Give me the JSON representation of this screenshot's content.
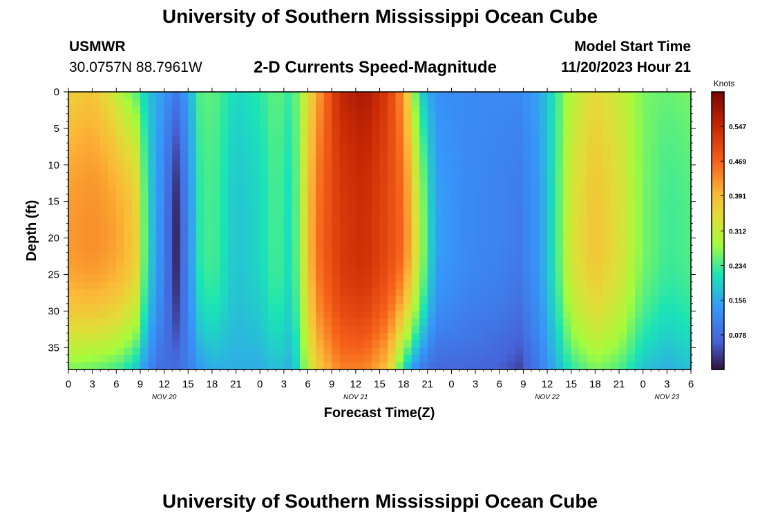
{
  "header": {
    "title": "University of Southern Mississippi Ocean Cube",
    "station": "USMWR",
    "coords": "30.0757N  88.7961W",
    "subtitle": "2-D Currents Speed-Magnitude",
    "model_label": "Model Start Time",
    "model_time": "11/20/2023 Hour 21"
  },
  "footer": {
    "title": "University of Southern Mississippi Ocean Cube"
  },
  "chart_data": {
    "type": "heatmap",
    "xlabel": "Forecast Time(Z)",
    "ylabel": "Depth (ft)",
    "x_tick_labels": [
      "0",
      "3",
      "6",
      "9",
      "12",
      "15",
      "18",
      "21",
      "0",
      "3",
      "6",
      "9",
      "12",
      "15",
      "18",
      "21",
      "0",
      "3",
      "6",
      "9",
      "12",
      "15",
      "18",
      "21",
      "0",
      "3",
      "6"
    ],
    "x_range_hours": [
      0,
      78
    ],
    "date_labels": [
      {
        "label": "NOV 20",
        "hour": 12
      },
      {
        "label": "NOV 21",
        "hour": 36
      },
      {
        "label": "NOV 22",
        "hour": 60
      },
      {
        "label": "NOV 23",
        "hour": 75
      }
    ],
    "y_ticks": [
      0,
      5,
      10,
      15,
      20,
      25,
      30,
      35
    ],
    "y_range_ft": [
      0,
      38
    ],
    "y_inverted": true,
    "colorbar": {
      "label": "Knots",
      "ticks": [
        "0.078",
        "0.156",
        "0.234",
        "0.312",
        "0.391",
        "0.469",
        "0.547"
      ],
      "range": [
        0.0,
        0.625
      ]
    },
    "profiles": [
      {
        "hour": 0,
        "surface": 0.36,
        "mid": 0.42,
        "bottom": 0.26
      },
      {
        "hour": 3,
        "surface": 0.38,
        "mid": 0.43,
        "bottom": 0.25
      },
      {
        "hour": 5,
        "surface": 0.34,
        "mid": 0.42,
        "bottom": 0.24
      },
      {
        "hour": 7,
        "surface": 0.28,
        "mid": 0.4,
        "bottom": 0.22
      },
      {
        "hour": 8.5,
        "surface": 0.24,
        "mid": 0.36,
        "bottom": 0.18
      },
      {
        "hour": 10,
        "surface": 0.18,
        "mid": 0.2,
        "bottom": 0.12
      },
      {
        "hour": 11.5,
        "surface": 0.15,
        "mid": 0.13,
        "bottom": 0.08
      },
      {
        "hour": 13.5,
        "surface": 0.1,
        "mid": 0.02,
        "bottom": 0.08
      },
      {
        "hour": 15,
        "surface": 0.15,
        "mid": 0.12,
        "bottom": 0.1
      },
      {
        "hour": 16.5,
        "surface": 0.24,
        "mid": 0.22,
        "bottom": 0.14
      },
      {
        "hour": 18,
        "surface": 0.25,
        "mid": 0.24,
        "bottom": 0.16
      },
      {
        "hour": 21,
        "surface": 0.2,
        "mid": 0.18,
        "bottom": 0.16
      },
      {
        "hour": 24,
        "surface": 0.22,
        "mid": 0.2,
        "bottom": 0.16
      },
      {
        "hour": 26,
        "surface": 0.25,
        "mid": 0.24,
        "bottom": 0.18
      },
      {
        "hour": 28,
        "surface": 0.22,
        "mid": 0.2,
        "bottom": 0.16
      },
      {
        "hour": 31,
        "surface": 0.4,
        "mid": 0.45,
        "bottom": 0.36
      },
      {
        "hour": 34,
        "surface": 0.55,
        "mid": 0.52,
        "bottom": 0.44
      },
      {
        "hour": 37,
        "surface": 0.58,
        "mid": 0.54,
        "bottom": 0.44
      },
      {
        "hour": 40,
        "surface": 0.52,
        "mid": 0.5,
        "bottom": 0.38
      },
      {
        "hour": 42,
        "surface": 0.42,
        "mid": 0.46,
        "bottom": 0.2
      },
      {
        "hour": 44,
        "surface": 0.2,
        "mid": 0.3,
        "bottom": 0.1
      },
      {
        "hour": 46,
        "surface": 0.13,
        "mid": 0.15,
        "bottom": 0.07
      },
      {
        "hour": 50,
        "surface": 0.12,
        "mid": 0.12,
        "bottom": 0.07
      },
      {
        "hour": 54,
        "surface": 0.12,
        "mid": 0.11,
        "bottom": 0.06
      },
      {
        "hour": 56.5,
        "surface": 0.12,
        "mid": 0.1,
        "bottom": 0.04
      },
      {
        "hour": 59,
        "surface": 0.15,
        "mid": 0.14,
        "bottom": 0.1
      },
      {
        "hour": 61,
        "surface": 0.22,
        "mid": 0.22,
        "bottom": 0.16
      },
      {
        "hour": 63,
        "surface": 0.3,
        "mid": 0.33,
        "bottom": 0.22
      },
      {
        "hour": 66,
        "surface": 0.35,
        "mid": 0.38,
        "bottom": 0.26
      },
      {
        "hour": 69,
        "surface": 0.32,
        "mid": 0.34,
        "bottom": 0.24
      },
      {
        "hour": 72,
        "surface": 0.26,
        "mid": 0.26,
        "bottom": 0.18
      },
      {
        "hour": 75,
        "surface": 0.25,
        "mid": 0.23,
        "bottom": 0.16
      },
      {
        "hour": 78,
        "surface": 0.26,
        "mid": 0.24,
        "bottom": 0.18
      }
    ]
  }
}
